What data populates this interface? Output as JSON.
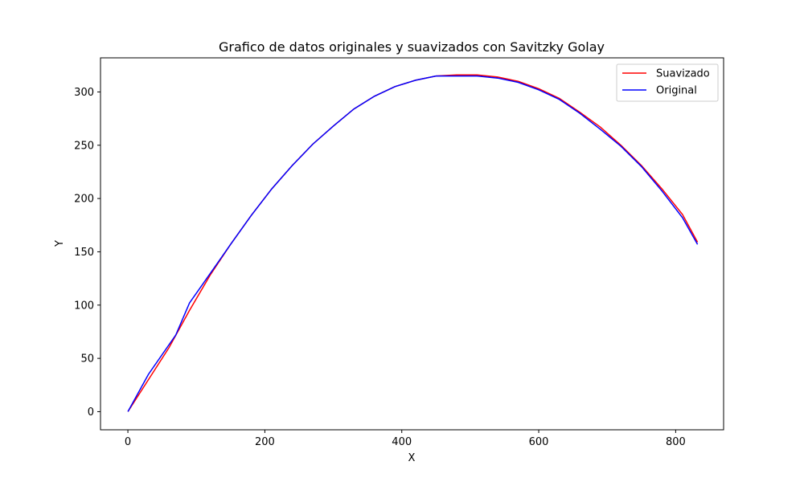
{
  "chart_data": {
    "type": "line",
    "title": "Grafico de datos originales y suavizados con Savitzky Golay",
    "xlabel": "X",
    "ylabel": "Y",
    "xlim": [
      -40,
      870
    ],
    "ylim": [
      -17,
      332
    ],
    "xticks": [
      0,
      200,
      400,
      600,
      800
    ],
    "yticks": [
      0,
      50,
      100,
      150,
      200,
      250,
      300
    ],
    "grid": false,
    "legend_position": "top-right",
    "series": [
      {
        "name": "Suavizado",
        "color": "#ff0000",
        "x": [
          0,
          30,
          60,
          90,
          120,
          150,
          180,
          210,
          240,
          270,
          300,
          330,
          360,
          390,
          420,
          450,
          480,
          510,
          540,
          570,
          600,
          630,
          660,
          690,
          720,
          750,
          780,
          810,
          832
        ],
        "y": [
          0,
          30,
          60,
          95,
          128,
          157,
          184,
          209,
          231,
          251,
          268,
          284,
          296,
          305,
          311,
          315,
          316,
          316,
          314,
          310,
          303,
          294,
          281,
          267,
          250,
          231,
          209,
          185,
          159
        ]
      },
      {
        "name": "Original",
        "color": "#0000ff",
        "x": [
          0,
          30,
          70,
          90,
          125,
          150,
          180,
          210,
          240,
          270,
          300,
          330,
          360,
          390,
          420,
          450,
          480,
          510,
          540,
          570,
          600,
          630,
          660,
          690,
          720,
          750,
          780,
          810,
          832
        ],
        "y": [
          0,
          35,
          72,
          102,
          134,
          157,
          184,
          209,
          231,
          251,
          268,
          284,
          296,
          305,
          311,
          315,
          315,
          315,
          313,
          309,
          302,
          293,
          280,
          265,
          249,
          230,
          207,
          182,
          157
        ]
      }
    ]
  }
}
